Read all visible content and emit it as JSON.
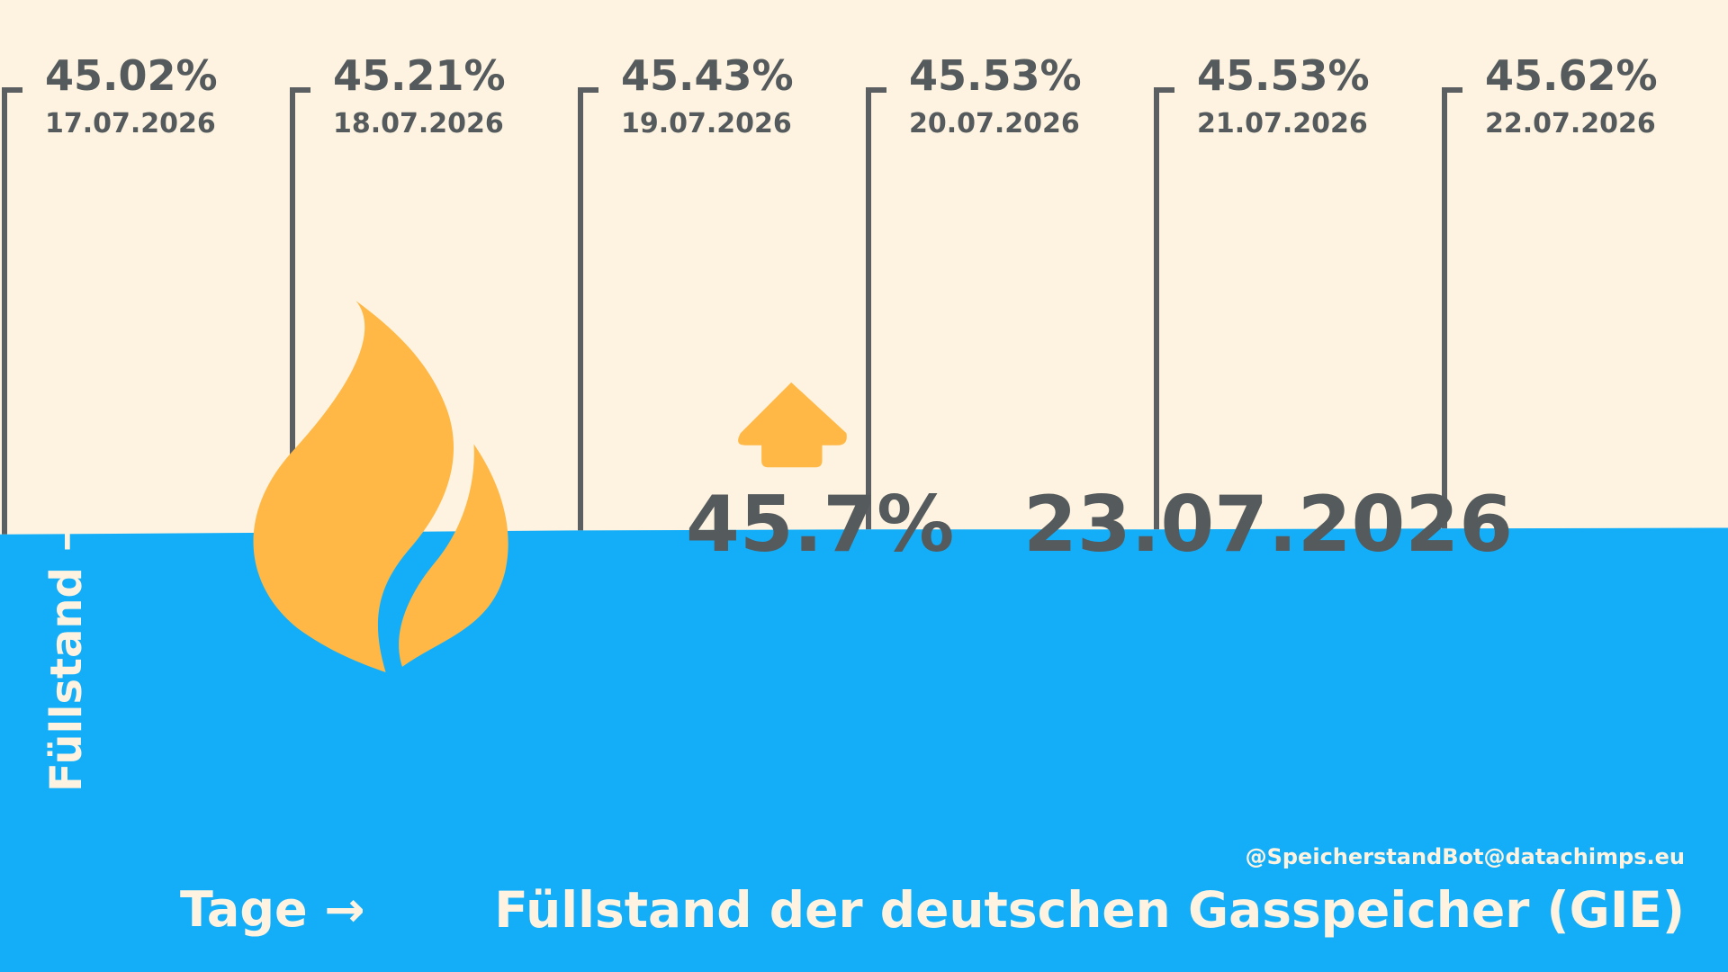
{
  "chart_data": {
    "type": "area",
    "title": "Füllstand der deutschen Gasspeicher (GIE)",
    "x_label": "Tage →",
    "y_label": "Füllstand →",
    "credit": "@SpeicherstandBot@datachimps.eu",
    "x": [
      "17.07.2026",
      "18.07.2026",
      "19.07.2026",
      "20.07.2026",
      "21.07.2026",
      "22.07.2026"
    ],
    "values": [
      45.02,
      45.21,
      45.43,
      45.53,
      45.53,
      45.62
    ],
    "value_labels": [
      "45.02%",
      "45.21%",
      "45.43%",
      "45.53%",
      "45.53%",
      "45.62%"
    ],
    "current": {
      "value": 45.7,
      "label": "45.7%",
      "date": "23.07.2026"
    },
    "ylim": [
      0,
      100
    ],
    "color": "#14aef8",
    "accent": "#ffb845",
    "text_color": "#555a5c",
    "bracket_color": "#5b5f61"
  }
}
